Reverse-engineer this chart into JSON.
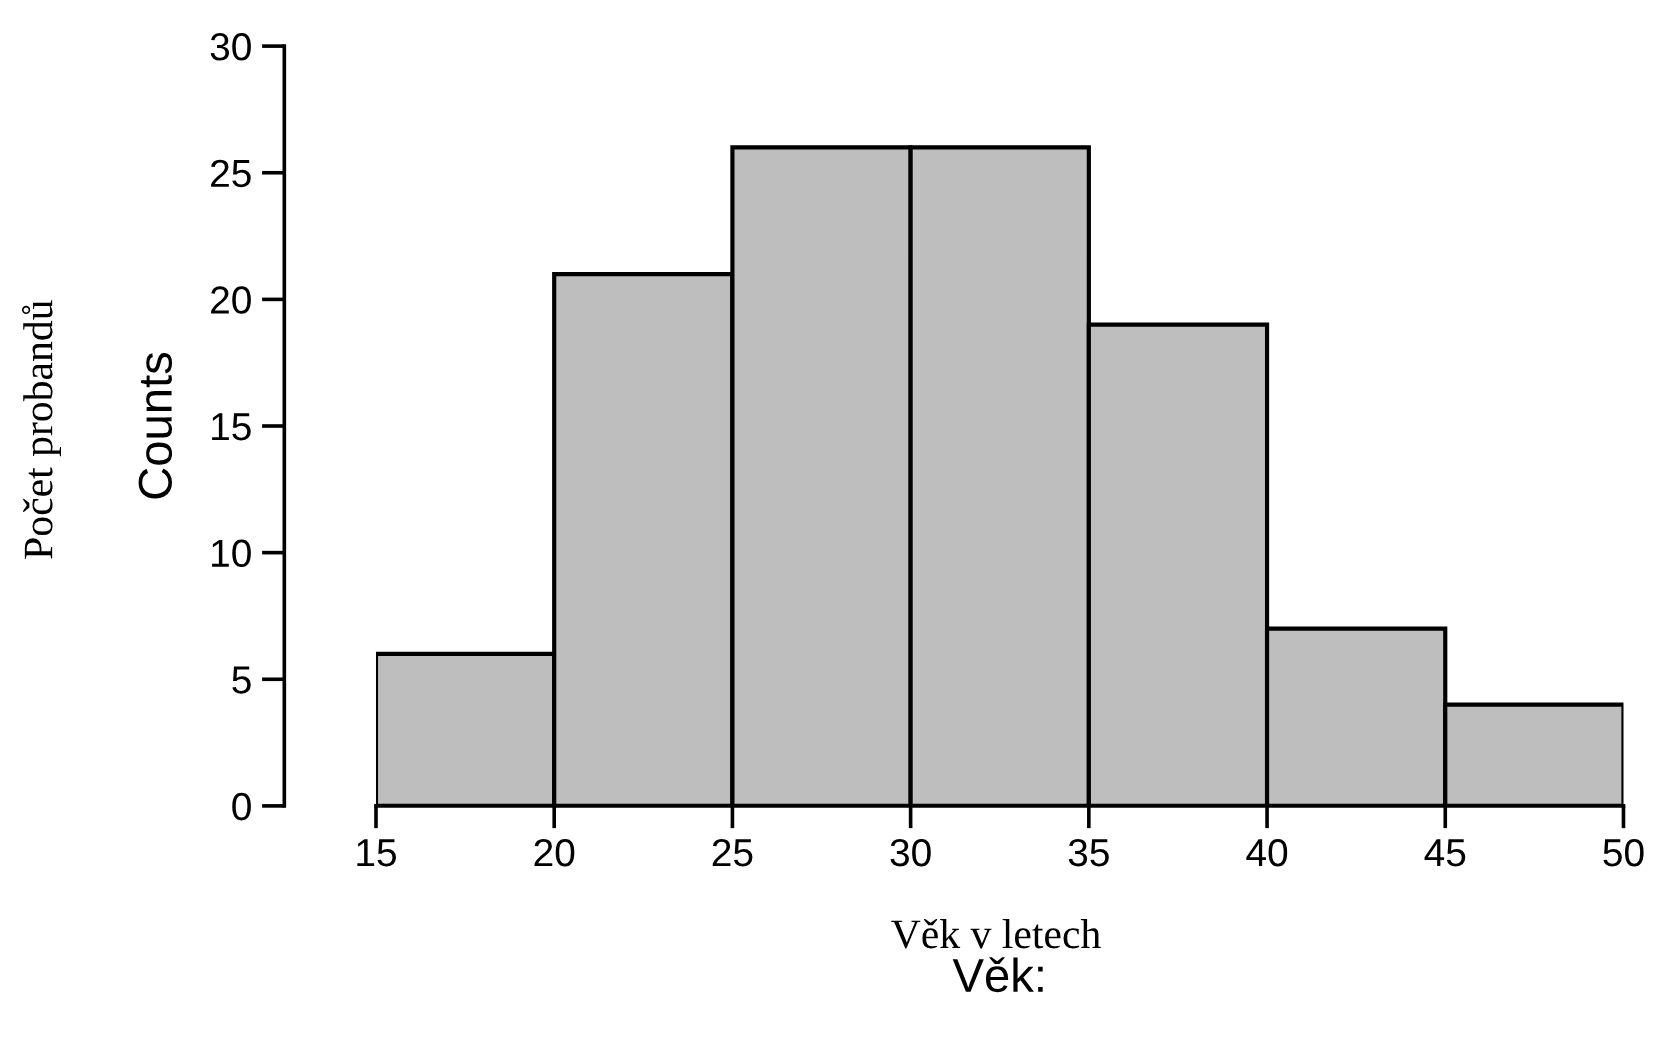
{
  "chart_data": {
    "type": "histogram",
    "bins": [
      15,
      20,
      25,
      30,
      35,
      40,
      45,
      50
    ],
    "values": [
      6,
      21,
      26,
      26,
      19,
      7,
      4
    ],
    "color": "#bebebe",
    "xlim": [
      15,
      50
    ],
    "xticks": [
      15,
      20,
      25,
      30,
      35,
      40,
      45,
      50
    ],
    "ylim": [
      0,
      30
    ],
    "yticks": [
      0,
      5,
      10,
      15,
      20,
      25,
      30
    ],
    "xlabel": "Věk:",
    "ylabel": "Counts",
    "annotations": [
      "Věk v letech",
      "Počet probandů"
    ],
    "grid": false
  }
}
